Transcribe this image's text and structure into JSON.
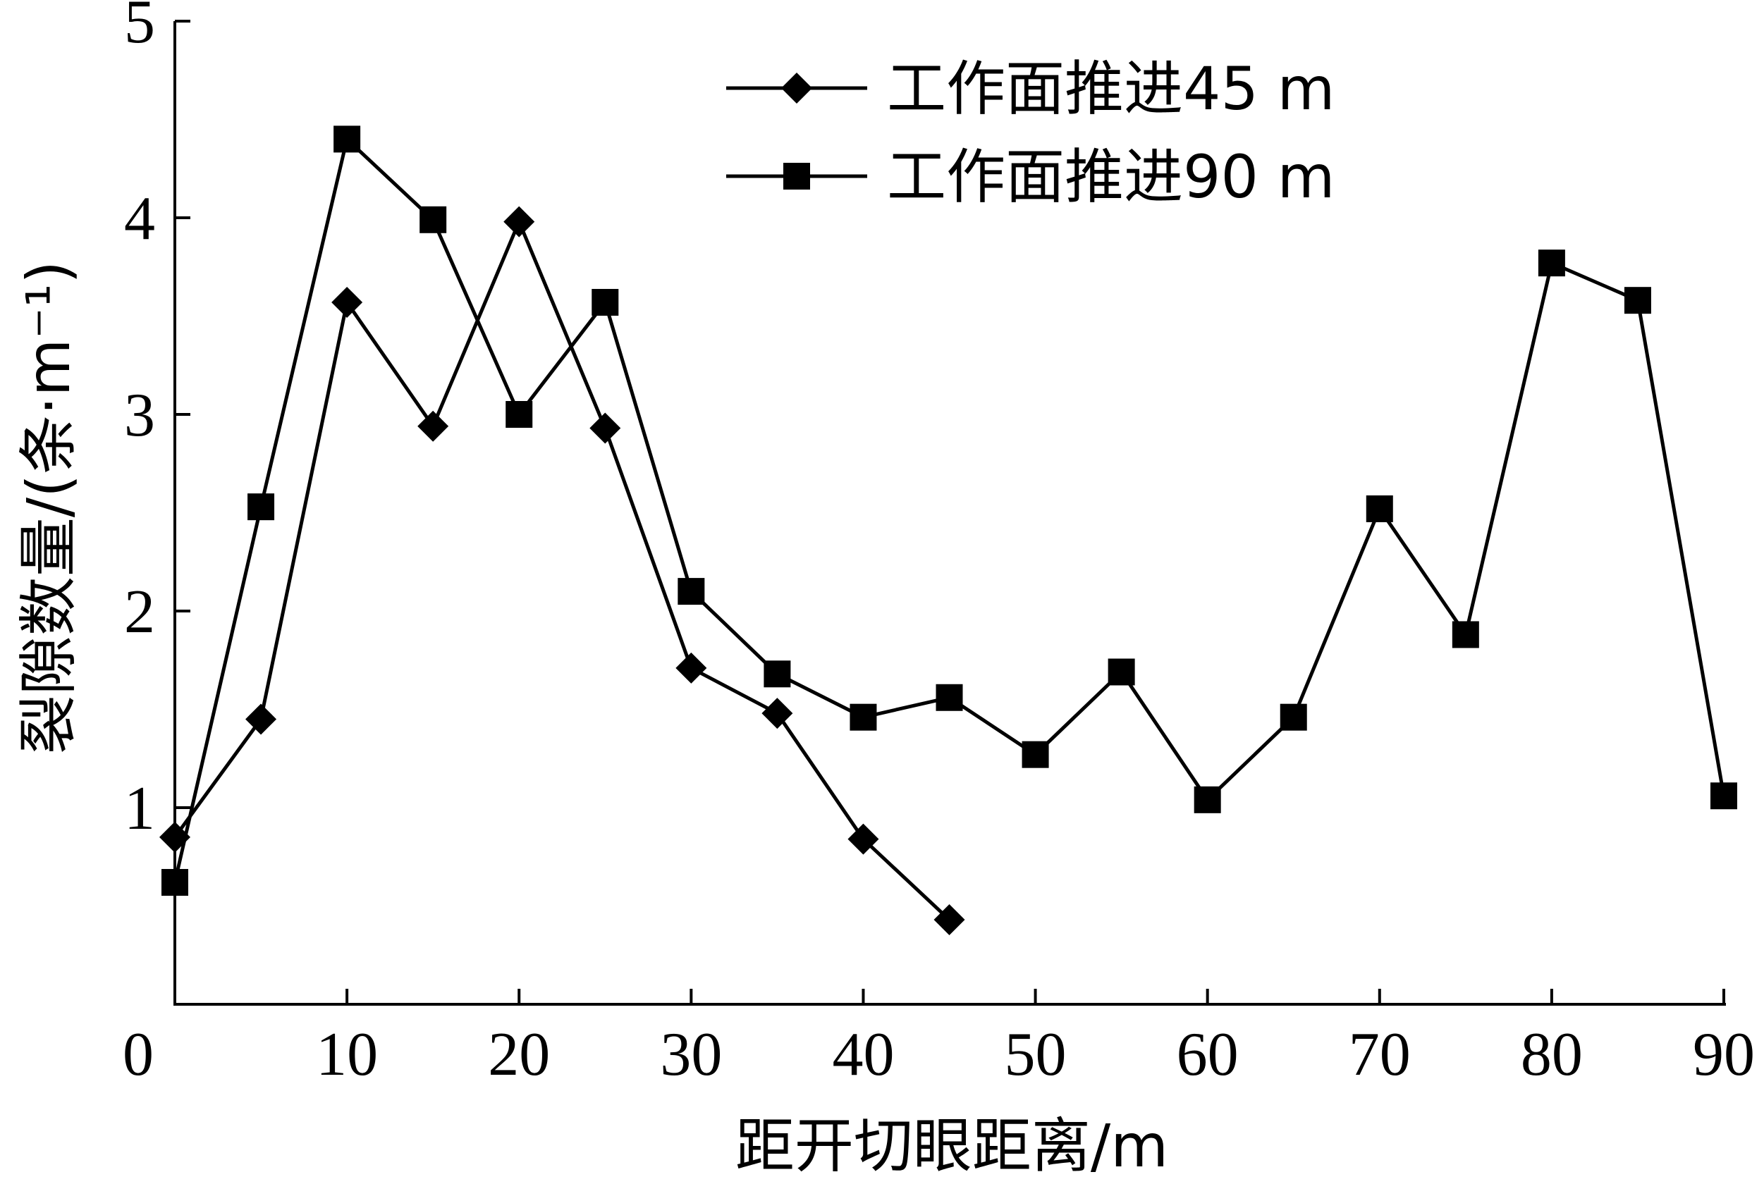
{
  "chart_data": {
    "type": "line",
    "title": "",
    "xlabel": "距开切眼距离/m",
    "ylabel": "裂隙数量/(条·m⁻¹)",
    "xlim": [
      0,
      90
    ],
    "ylim": [
      0,
      5
    ],
    "x_ticks": [
      0,
      10,
      20,
      30,
      40,
      50,
      60,
      70,
      80,
      90
    ],
    "y_ticks": [
      1,
      2,
      3,
      4,
      5
    ],
    "grid": false,
    "legend_position": "top-right",
    "series": [
      {
        "name": "工作面推进45 m",
        "marker": "diamond",
        "x": [
          0,
          5,
          10,
          15,
          20,
          25,
          30,
          35,
          40,
          45
        ],
        "y": [
          0.85,
          1.45,
          3.57,
          2.94,
          3.98,
          2.93,
          1.71,
          1.48,
          0.84,
          0.43
        ]
      },
      {
        "name": "工作面推进90 m",
        "marker": "square",
        "x": [
          0,
          5,
          10,
          15,
          20,
          25,
          30,
          35,
          40,
          45,
          50,
          55,
          60,
          65,
          70,
          75,
          80,
          85,
          90
        ],
        "y": [
          0.62,
          2.53,
          4.4,
          3.99,
          3.0,
          3.57,
          2.1,
          1.68,
          1.46,
          1.56,
          1.27,
          1.69,
          1.04,
          1.46,
          2.52,
          1.88,
          3.77,
          3.58,
          1.06
        ]
      }
    ]
  }
}
